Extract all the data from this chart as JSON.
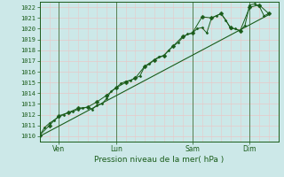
{
  "title": "",
  "xlabel": "Pression niveau de la mer( hPa )",
  "ylabel": "",
  "ylim": [
    1009.5,
    1022.5
  ],
  "xlim": [
    0,
    100
  ],
  "background_color": "#cce8e8",
  "grid_color": "#e8c8c8",
  "line_color": "#1a5c1a",
  "tick_label_color": "#1a5c1a",
  "day_labels": [
    "Ven",
    "Lun",
    "Sam",
    "Dim"
  ],
  "day_positions": [
    8,
    32,
    64,
    88
  ],
  "yticks": [
    1010,
    1011,
    1012,
    1013,
    1014,
    1015,
    1016,
    1017,
    1018,
    1019,
    1020,
    1021,
    1022
  ],
  "series1_x": [
    0,
    2,
    4,
    6,
    8,
    10,
    12,
    14,
    16,
    18,
    20,
    22,
    24,
    26,
    28,
    30,
    32,
    34,
    36,
    38,
    40,
    42,
    44,
    46,
    48,
    50,
    52,
    54,
    56,
    58,
    60,
    62,
    64,
    66,
    68,
    70,
    72,
    74,
    76,
    78,
    80,
    82,
    84,
    86,
    88,
    90,
    92,
    94,
    96
  ],
  "series1_y": [
    1010.1,
    1010.8,
    1011.2,
    1011.5,
    1011.8,
    1012.0,
    1012.2,
    1012.3,
    1012.5,
    1012.6,
    1012.7,
    1012.5,
    1012.9,
    1013.0,
    1013.5,
    1014.2,
    1014.5,
    1014.9,
    1015.1,
    1015.2,
    1015.4,
    1015.6,
    1016.5,
    1016.7,
    1017.1,
    1017.4,
    1017.5,
    1018.0,
    1018.4,
    1018.7,
    1019.2,
    1019.5,
    1019.6,
    1020.0,
    1020.1,
    1019.6,
    1021.0,
    1021.2,
    1021.4,
    1020.8,
    1020.0,
    1020.0,
    1019.8,
    1020.3,
    1022.2,
    1022.3,
    1022.1,
    1021.2,
    1021.4
  ],
  "series2_x": [
    0,
    4,
    8,
    12,
    16,
    20,
    24,
    28,
    32,
    36,
    40,
    44,
    48,
    52,
    56,
    60,
    64,
    68,
    72,
    76,
    80,
    84,
    88,
    92,
    96
  ],
  "series2_y": [
    1010.1,
    1011.0,
    1011.9,
    1012.2,
    1012.6,
    1012.7,
    1013.2,
    1013.8,
    1014.5,
    1015.0,
    1015.4,
    1016.5,
    1017.1,
    1017.5,
    1018.4,
    1019.3,
    1019.6,
    1021.1,
    1021.0,
    1021.4,
    1020.1,
    1019.8,
    1022.0,
    1022.2,
    1021.4
  ],
  "trend_x": [
    0,
    96
  ],
  "trend_y": [
    1010.0,
    1021.3
  ]
}
